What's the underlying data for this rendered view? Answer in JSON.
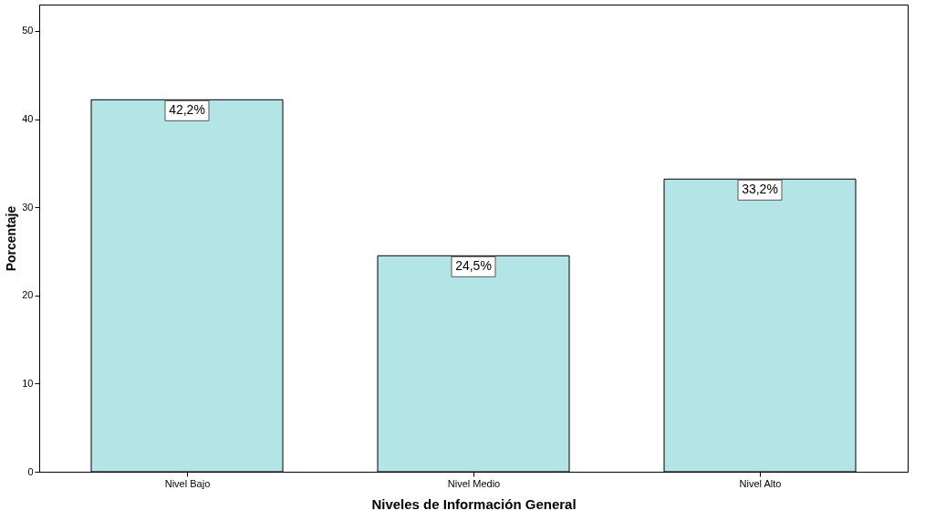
{
  "chart_data": {
    "type": "bar",
    "xlabel": "Niveles de Información General",
    "ylabel": "Porcentaje",
    "categories": [
      "Nivel Bajo",
      "Nivel Medio",
      "Nivel Alto"
    ],
    "values": [
      42.2,
      24.5,
      33.2
    ],
    "value_labels": [
      "42,2%",
      "24,5%",
      "33,2%"
    ],
    "color": "#b3e5e6",
    "ylim": [
      0,
      53
    ],
    "yticks": [
      0,
      10,
      20,
      30,
      40,
      50
    ],
    "grid": false
  }
}
